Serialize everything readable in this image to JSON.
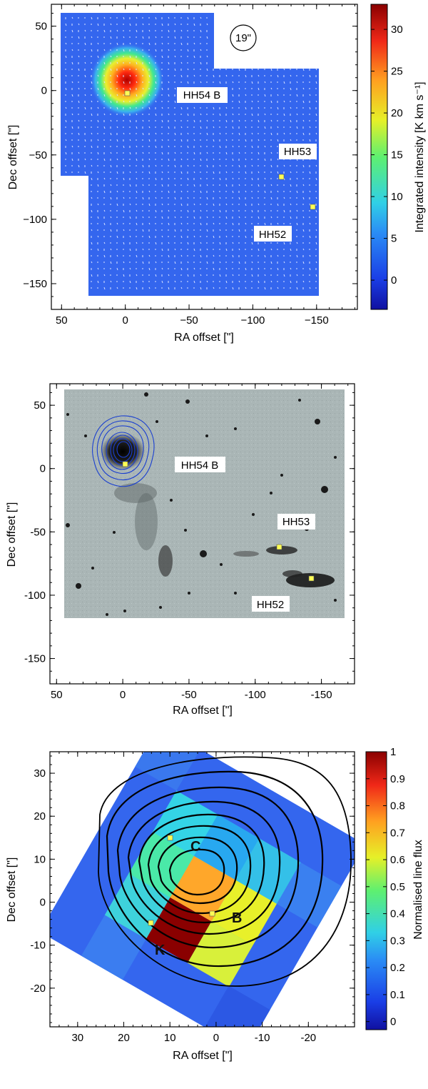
{
  "figure": {
    "panels": [
      {
        "ylabel": "Dec offset [\"]",
        "xlabel": "RA offset [\"]",
        "colorbar_label": "Integrated intensity [K km s⁻¹]",
        "beam_label": "19\"",
        "source_labels": [
          "HH54 B",
          "HH53",
          "HH52"
        ]
      },
      {
        "ylabel": "Dec offset [\"]",
        "xlabel": "RA offset [\"]",
        "source_labels": [
          "HH54 B",
          "HH53",
          "HH52"
        ]
      },
      {
        "ylabel": "Dec offset [\"]",
        "xlabel": "RA offset [\"]",
        "colorbar_label": "Normalised line flux",
        "knot_labels": [
          "C",
          "B",
          "K"
        ]
      }
    ]
  },
  "colors": {
    "map_background": "#3466ee",
    "peak": "#b00000",
    "marker": "#ffff55",
    "contour_blue": "#1a3fd0",
    "contour_black": "#000000"
  },
  "chart_data": [
    {
      "type": "heatmap",
      "xlim": [
        58,
        -182
      ],
      "ylim": [
        -170,
        67
      ],
      "x_ticks": [
        "50",
        "0",
        "−50",
        "−100",
        "−150"
      ],
      "y_ticks": [
        "50",
        "0",
        "−50",
        "−100",
        "−150"
      ],
      "colorbar_ticks": [
        "30",
        "25",
        "20",
        "15",
        "10",
        "5",
        "0"
      ],
      "colorbar_range": [
        -3.5,
        33
      ],
      "peak": {
        "x": 2,
        "y": 10,
        "value": 33
      },
      "markers": [
        {
          "x": 0,
          "y": 0
        },
        {
          "x": -122,
          "y": -65
        },
        {
          "x": -146,
          "y": -89
        }
      ]
    },
    {
      "type": "scatter",
      "xlim": [
        55,
        -175
      ],
      "ylim": [
        -170,
        67
      ],
      "x_ticks": [
        "50",
        "0",
        "-50",
        "-100",
        "-150"
      ],
      "y_ticks": [
        "50",
        "0",
        "-50",
        "-100",
        "-150"
      ],
      "markers": [
        {
          "x": 0,
          "y": 0
        },
        {
          "x": -122,
          "y": -65
        },
        {
          "x": -146,
          "y": -89
        }
      ]
    },
    {
      "type": "heatmap",
      "xlim": [
        36,
        -30
      ],
      "ylim": [
        -29,
        35
      ],
      "x_ticks": [
        "30",
        "20",
        "10",
        "0",
        "-10",
        "-20"
      ],
      "y_ticks": [
        "30",
        "20",
        "10",
        "0",
        "-10",
        "-20"
      ],
      "colorbar_ticks": [
        "1",
        "0.9",
        "0.8",
        "0.7",
        "0.6",
        "0.5",
        "0.4",
        "0.3",
        "0.2",
        "0.1",
        "0"
      ],
      "colorbar_range": [
        -0.03,
        1
      ],
      "markers": [
        {
          "x": 8.5,
          "y": 16
        },
        {
          "x": 0,
          "y": 0
        },
        {
          "x": 12.5,
          "y": -2
        }
      ]
    }
  ]
}
